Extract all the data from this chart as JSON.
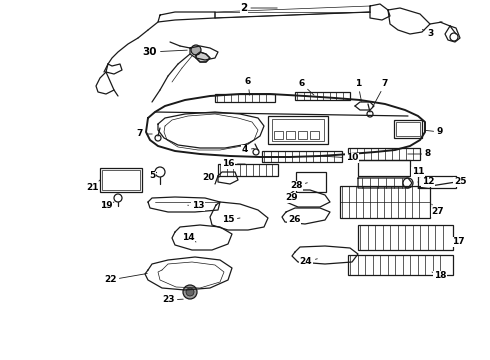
{
  "background_color": "#ffffff",
  "line_color": "#1a1a1a",
  "label_color": "#000000",
  "fig_width": 4.9,
  "fig_height": 3.6,
  "dpi": 100,
  "label_fontsize": 6.5,
  "lw_main": 0.9,
  "lw_thin": 0.5,
  "lw_thick": 1.4
}
